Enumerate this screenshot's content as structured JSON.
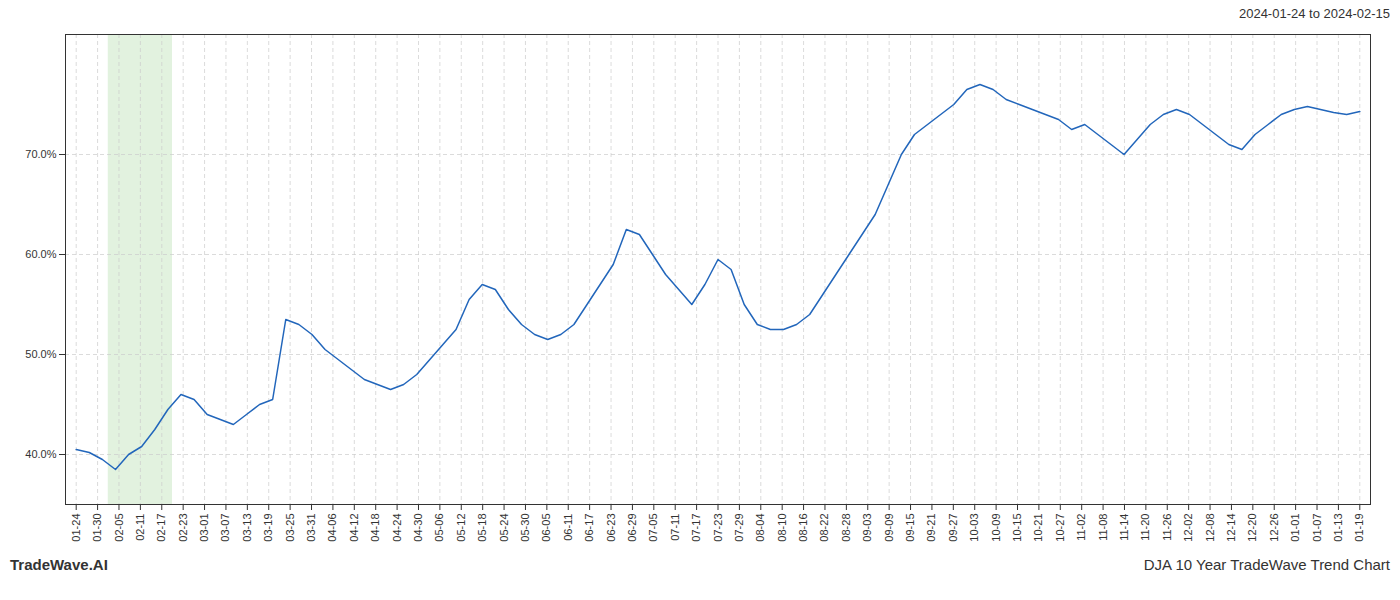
{
  "chart_data": {
    "type": "line",
    "annotations": [
      "2024-01-24 to 2024-02-15",
      "TradeWave.AI",
      "DJA 10 Year TradeWave Trend Chart"
    ],
    "color": "#2266bb",
    "grid": true,
    "highlight": {
      "x": [
        1.5,
        4.5
      ],
      "color": "#d6ecd2"
    },
    "xlim": [
      -0.5,
      60.5
    ],
    "xticks": [
      {
        "value": 0,
        "label": "01-24"
      },
      {
        "value": 1,
        "label": "01-30"
      },
      {
        "value": 2,
        "label": "02-05"
      },
      {
        "value": 3,
        "label": "02-11"
      },
      {
        "value": 4,
        "label": "02-17"
      },
      {
        "value": 5,
        "label": "02-23"
      },
      {
        "value": 6,
        "label": "03-01"
      },
      {
        "value": 7,
        "label": "03-07"
      },
      {
        "value": 8,
        "label": "03-13"
      },
      {
        "value": 9,
        "label": "03-19"
      },
      {
        "value": 10,
        "label": "03-25"
      },
      {
        "value": 11,
        "label": "03-31"
      },
      {
        "value": 12,
        "label": "04-06"
      },
      {
        "value": 13,
        "label": "04-12"
      },
      {
        "value": 14,
        "label": "04-18"
      },
      {
        "value": 15,
        "label": "04-24"
      },
      {
        "value": 16,
        "label": "04-30"
      },
      {
        "value": 17,
        "label": "05-06"
      },
      {
        "value": 18,
        "label": "05-12"
      },
      {
        "value": 19,
        "label": "05-18"
      },
      {
        "value": 20,
        "label": "05-24"
      },
      {
        "value": 21,
        "label": "05-30"
      },
      {
        "value": 22,
        "label": "06-05"
      },
      {
        "value": 23,
        "label": "06-11"
      },
      {
        "value": 24,
        "label": "06-17"
      },
      {
        "value": 25,
        "label": "06-23"
      },
      {
        "value": 26,
        "label": "06-29"
      },
      {
        "value": 27,
        "label": "07-05"
      },
      {
        "value": 28,
        "label": "07-11"
      },
      {
        "value": 29,
        "label": "07-17"
      },
      {
        "value": 30,
        "label": "07-23"
      },
      {
        "value": 31,
        "label": "07-29"
      },
      {
        "value": 32,
        "label": "08-04"
      },
      {
        "value": 33,
        "label": "08-10"
      },
      {
        "value": 34,
        "label": "08-16"
      },
      {
        "value": 35,
        "label": "08-22"
      },
      {
        "value": 36,
        "label": "08-28"
      },
      {
        "value": 37,
        "label": "09-03"
      },
      {
        "value": 38,
        "label": "09-09"
      },
      {
        "value": 39,
        "label": "09-15"
      },
      {
        "value": 40,
        "label": "09-21"
      },
      {
        "value": 41,
        "label": "09-27"
      },
      {
        "value": 42,
        "label": "10-03"
      },
      {
        "value": 43,
        "label": "10-09"
      },
      {
        "value": 44,
        "label": "10-15"
      },
      {
        "value": 45,
        "label": "10-21"
      },
      {
        "value": 46,
        "label": "10-27"
      },
      {
        "value": 47,
        "label": "11-02"
      },
      {
        "value": 48,
        "label": "11-08"
      },
      {
        "value": 49,
        "label": "11-14"
      },
      {
        "value": 50,
        "label": "11-20"
      },
      {
        "value": 51,
        "label": "11-26"
      },
      {
        "value": 52,
        "label": "12-02"
      },
      {
        "value": 53,
        "label": "12-08"
      },
      {
        "value": 54,
        "label": "12-14"
      },
      {
        "value": 55,
        "label": "12-20"
      },
      {
        "value": 56,
        "label": "12-26"
      },
      {
        "value": 57,
        "label": "01-01"
      },
      {
        "value": 58,
        "label": "01-07"
      },
      {
        "value": 59,
        "label": "01-13"
      },
      {
        "value": 60,
        "label": "01-19"
      }
    ],
    "ylim": [
      35.0,
      82.0
    ],
    "yticks": [
      {
        "value": 40.0,
        "label": "40.0%"
      },
      {
        "value": 50.0,
        "label": "50.0%"
      },
      {
        "value": 60.0,
        "label": "60.0%"
      },
      {
        "value": 70.0,
        "label": "70.0%"
      }
    ],
    "x": [
      0,
      0.6122,
      1.2245,
      1.8367,
      2.449,
      3.0612,
      3.6735,
      4.2857,
      4.898,
      5.5102,
      6.1224,
      6.7347,
      7.3469,
      7.9592,
      8.5714,
      9.1837,
      9.7959,
      10.4082,
      11.0204,
      11.6327,
      12.2449,
      12.8571,
      13.4694,
      14.0816,
      14.6939,
      15.3061,
      15.9184,
      16.5306,
      17.1429,
      17.7551,
      18.3673,
      18.9796,
      19.5918,
      20.2041,
      20.8163,
      21.4286,
      22.0408,
      22.6531,
      23.2653,
      23.8776,
      24.4898,
      25.102,
      25.7143,
      26.3265,
      26.9388,
      27.551,
      28.1633,
      28.7755,
      29.3878,
      30,
      30.6122,
      31.2245,
      31.8367,
      32.449,
      33.0612,
      33.6735,
      34.2857,
      34.898,
      35.5102,
      36.1224,
      36.7347,
      37.3469,
      37.9592,
      38.5714,
      39.1837,
      39.7959,
      40.4082,
      41.0204,
      41.6327,
      42.2449,
      42.8571,
      43.4694,
      44.0816,
      44.6939,
      45.3061,
      45.9184,
      46.5306,
      47.1429,
      47.7551,
      48.3673,
      48.9796,
      49.5918,
      50.2041,
      50.8163,
      51.4286,
      52.0408,
      52.6531,
      53.2653,
      53.8776,
      54.4898,
      55.102,
      55.7143,
      56.3265,
      56.9388,
      57.551,
      58.1633,
      58.7755,
      59.3878,
      60
    ],
    "values": [
      40.5,
      40.2,
      39.5,
      38.5,
      40.0,
      40.8,
      42.5,
      44.5,
      46.0,
      45.5,
      44.0,
      43.5,
      43.0,
      44.0,
      45.0,
      45.5,
      53.5,
      53.0,
      52.0,
      50.5,
      49.5,
      48.5,
      47.5,
      47.0,
      46.5,
      47.0,
      48.0,
      49.5,
      51.0,
      52.5,
      55.5,
      57.0,
      56.5,
      54.5,
      53.0,
      52.0,
      51.5,
      52.0,
      53.0,
      55.0,
      57.0,
      59.0,
      62.5,
      62.0,
      60.0,
      58.0,
      56.5,
      55.0,
      57.0,
      59.5,
      58.5,
      55.0,
      53.0,
      52.5,
      52.5,
      53.0,
      54.0,
      56.0,
      58.0,
      60.0,
      62.0,
      64.0,
      67.0,
      70.0,
      72.0,
      73.0,
      74.0,
      75.0,
      76.5,
      77.0,
      76.5,
      75.5,
      75.0,
      74.5,
      74.0,
      73.5,
      72.5,
      73.0,
      72.0,
      71.0,
      70.0,
      71.5,
      73.0,
      74.0,
      74.5,
      74.0,
      73.0,
      72.0,
      71.0,
      70.5,
      72.0,
      73.0,
      74.0,
      74.5,
      74.8,
      74.5,
      74.2,
      74.0,
      74.3
    ]
  }
}
